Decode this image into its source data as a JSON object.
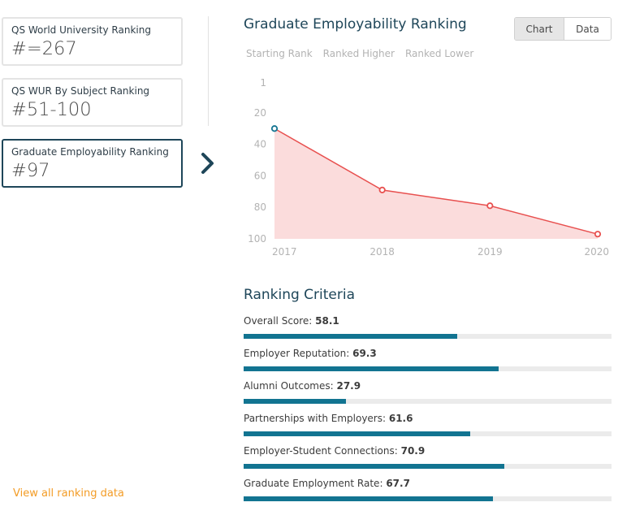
{
  "rank_cards": [
    {
      "label": "QS World University Ranking",
      "value": "#=267"
    },
    {
      "label": "QS WUR By Subject Ranking",
      "value": "#51-100"
    },
    {
      "label": "Graduate Employability Ranking",
      "value": "#97"
    }
  ],
  "view_all_label": "View all ranking data",
  "chart_panel": {
    "title": "Graduate Employability Ranking",
    "toggle": {
      "chart": "Chart",
      "data": "Data"
    },
    "filters": [
      "Starting Rank",
      "Ranked Higher",
      "Ranked Lower"
    ]
  },
  "chart_data": {
    "type": "area",
    "x": [
      "2017",
      "2018",
      "2019",
      "2020"
    ],
    "values": [
      30,
      69,
      79,
      97
    ],
    "yticks": [
      1,
      20,
      40,
      60,
      80,
      100
    ],
    "ylim": [
      1,
      100
    ],
    "y_inverted": true,
    "grid": false,
    "colors": {
      "line": "#e8504f",
      "fill": "#fbdcdc",
      "start_marker": "#127491"
    }
  },
  "criteria": {
    "title": "Ranking Criteria",
    "items": [
      {
        "label": "Overall Score: ",
        "value": "58.1"
      },
      {
        "label": "Employer Reputation: ",
        "value": "69.3"
      },
      {
        "label": "Alumni Outcomes: ",
        "value": "27.9"
      },
      {
        "label": "Partnerships with Employers: ",
        "value": "61.6"
      },
      {
        "label": "Employer-Student Connections: ",
        "value": "70.9"
      },
      {
        "label": "Graduate Employment Rate: ",
        "value": "67.7"
      }
    ],
    "bar_color": "#127491"
  }
}
